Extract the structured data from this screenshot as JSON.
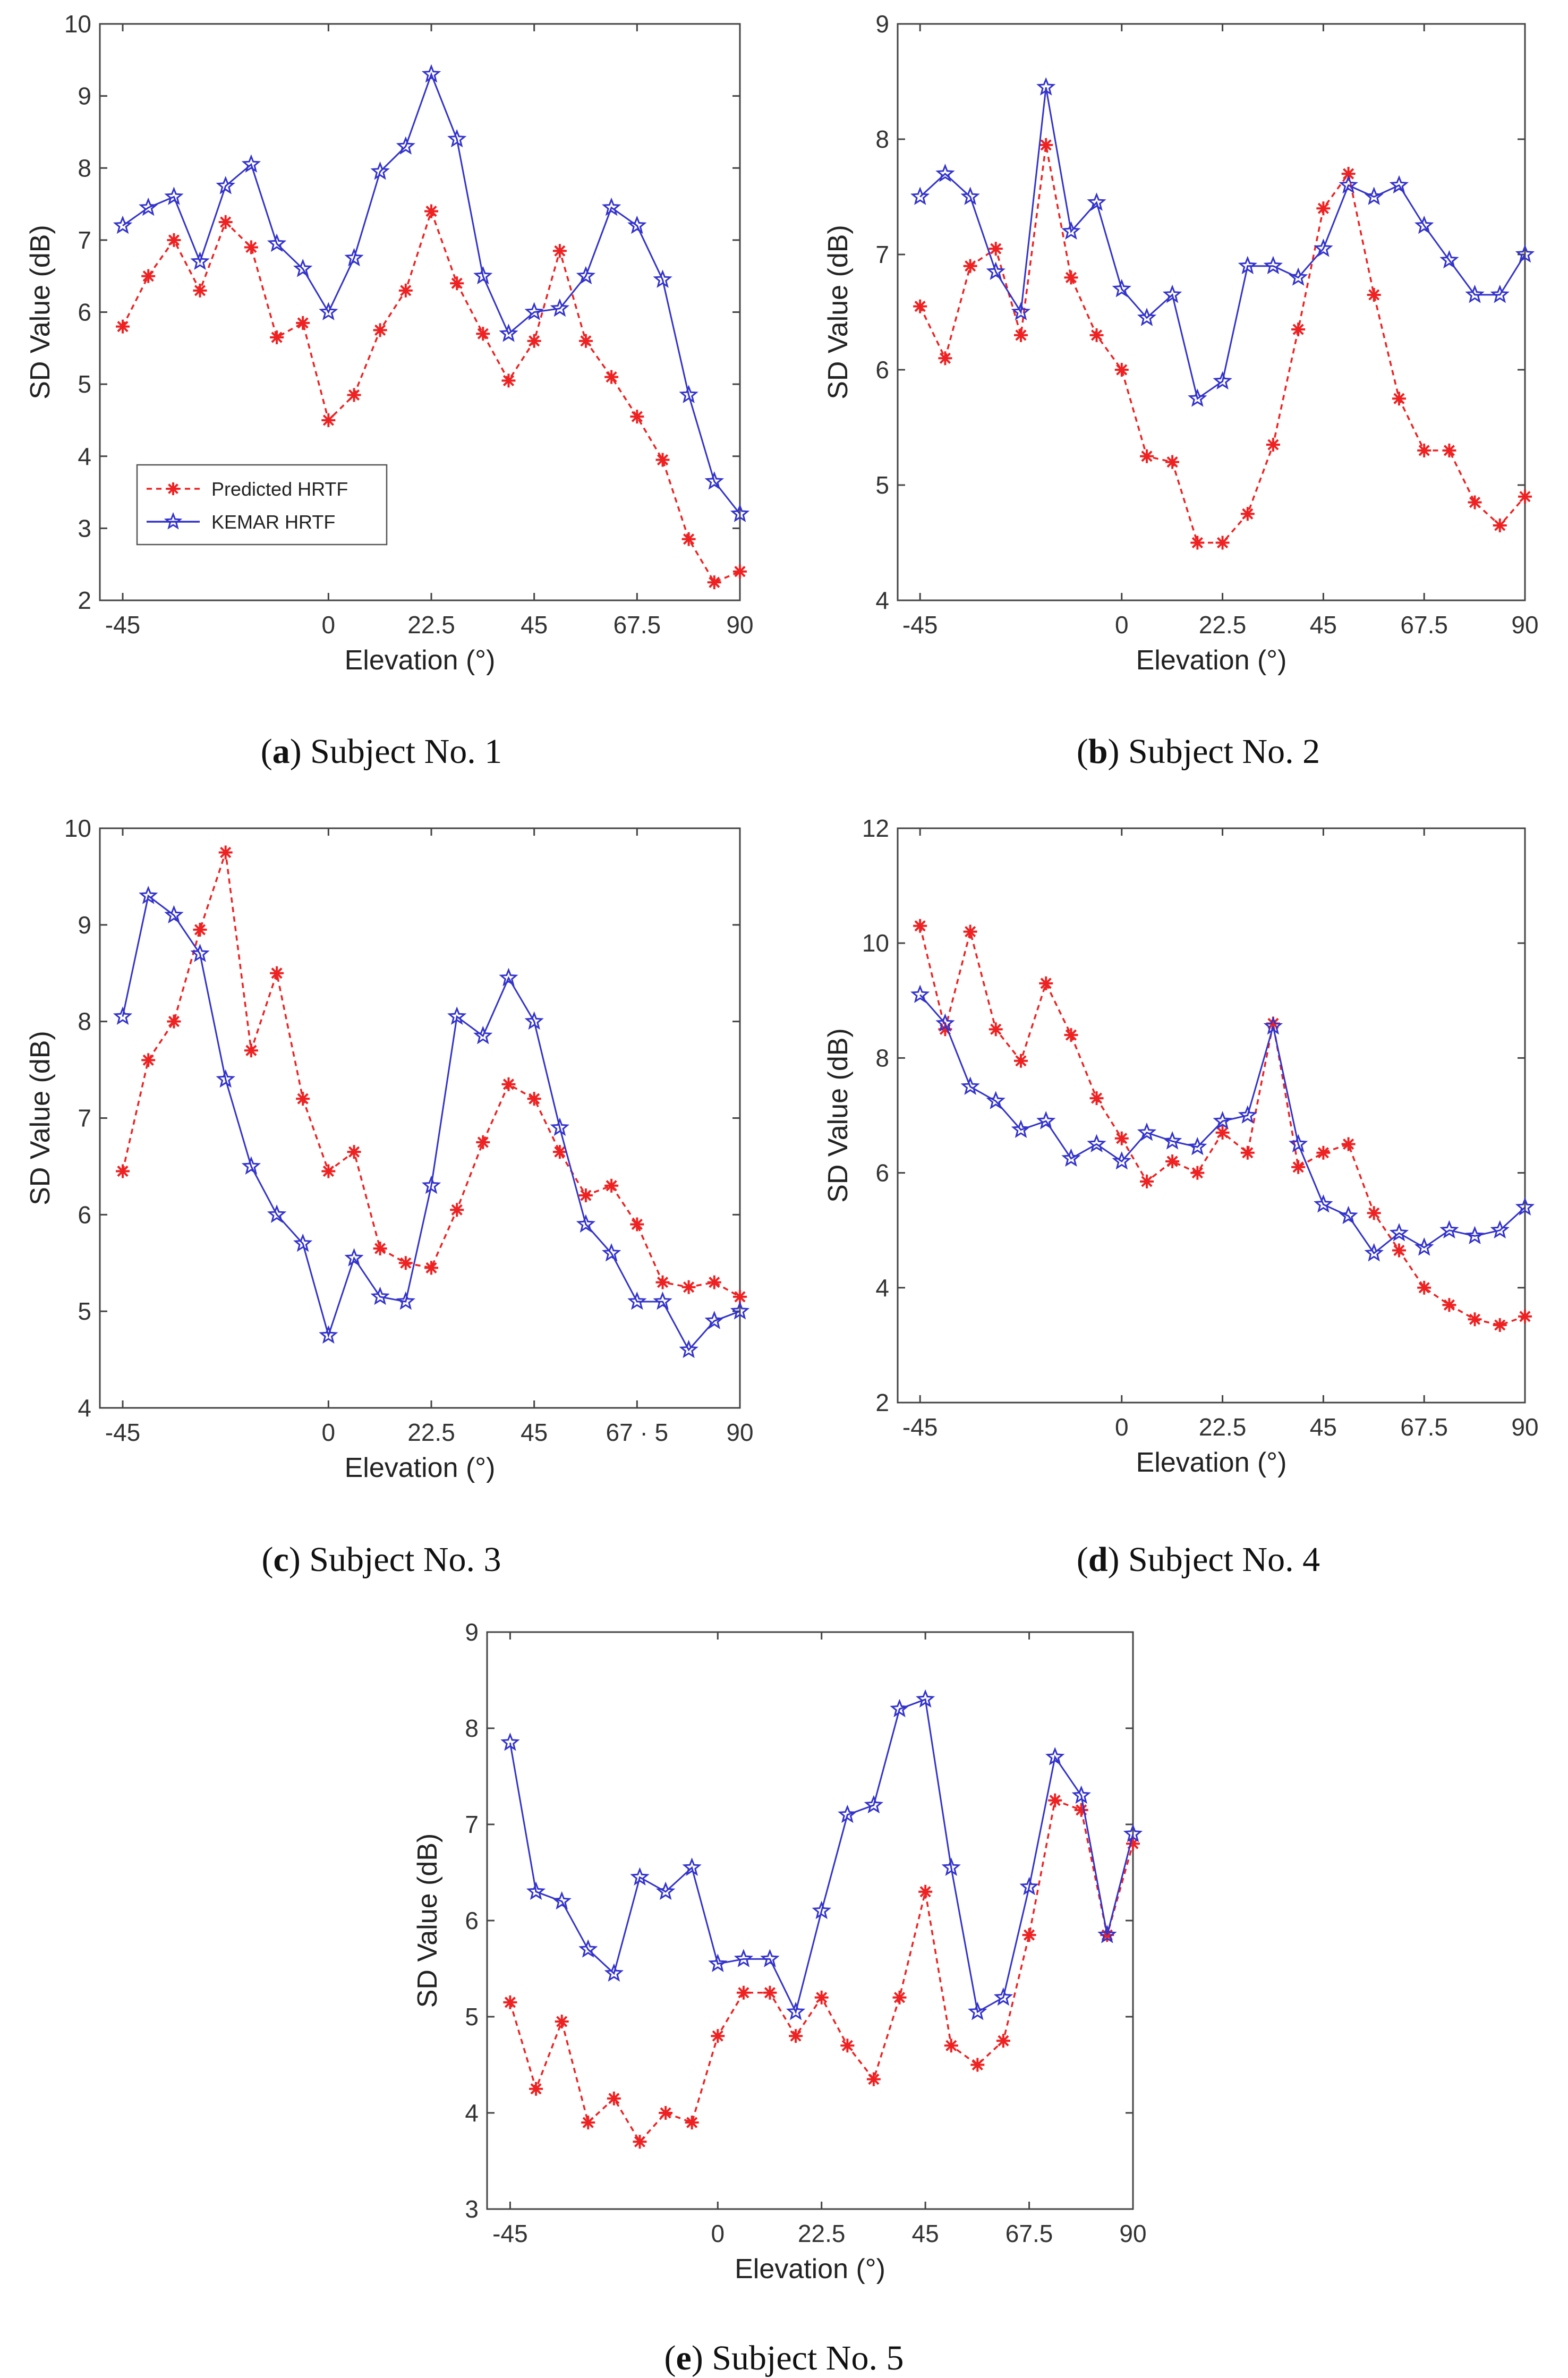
{
  "chart_data": [
    {
      "type": "line",
      "panel": "a",
      "caption_letter": "a",
      "caption_text": ") Subject No. 1",
      "ylabel": "SD Value (dB)",
      "xlabel": "Elevation (°)",
      "ylim": [
        2,
        10
      ],
      "yticks": [
        "2",
        "3",
        "4",
        "5",
        "6",
        "7",
        "8",
        "9",
        "10"
      ],
      "xlim": [
        -50,
        90
      ],
      "xticks": [
        {
          "v": -45,
          "label": "-45"
        },
        {
          "v": 0,
          "label": "0"
        },
        {
          "v": 22.5,
          "label": "22.5"
        },
        {
          "v": 45,
          "label": "45"
        },
        {
          "v": 67.5,
          "label": "67.5"
        },
        {
          "v": 90,
          "label": "90"
        }
      ],
      "legend": {
        "show": true,
        "position": "bottom-left"
      },
      "x": [
        -45,
        -39.4,
        -33.8,
        -28.1,
        -22.5,
        -16.9,
        -11.3,
        -5.6,
        0,
        5.6,
        11.3,
        16.9,
        22.5,
        28.1,
        33.8,
        39.4,
        45,
        50.6,
        56.3,
        61.9,
        67.5,
        73.1,
        78.8,
        84.4,
        90
      ],
      "series": [
        {
          "name": "Predicted HRTF",
          "color": "#ee2222",
          "style": "dashed",
          "marker": "asterisk",
          "values": [
            5.8,
            6.5,
            7.0,
            6.3,
            7.25,
            6.9,
            5.65,
            5.85,
            4.5,
            4.85,
            5.75,
            6.3,
            7.4,
            6.4,
            5.7,
            5.05,
            5.6,
            6.85,
            5.6,
            5.1,
            4.55,
            3.95,
            2.85,
            2.25,
            2.4
          ]
        },
        {
          "name": "KEMAR HRTF",
          "color": "#3333cc",
          "style": "solid",
          "marker": "star",
          "values": [
            7.2,
            7.45,
            7.6,
            6.7,
            7.75,
            8.05,
            6.95,
            6.6,
            6.0,
            6.75,
            7.95,
            8.3,
            9.3,
            8.4,
            6.5,
            5.7,
            6.0,
            6.05,
            6.5,
            7.45,
            7.2,
            6.45,
            4.85,
            3.65,
            3.2
          ]
        }
      ]
    },
    {
      "type": "line",
      "panel": "b",
      "caption_letter": "b",
      "caption_text": ") Subject No. 2",
      "ylabel": "SD Value (dB)",
      "xlabel": "Elevation (°)",
      "ylim": [
        4,
        9
      ],
      "yticks": [
        "4",
        "5",
        "6",
        "7",
        "8",
        "9"
      ],
      "xlim": [
        -50,
        90
      ],
      "xticks": [
        {
          "v": -45,
          "label": "-45"
        },
        {
          "v": 0,
          "label": "0"
        },
        {
          "v": 22.5,
          "label": "22.5"
        },
        {
          "v": 45,
          "label": "45"
        },
        {
          "v": 67.5,
          "label": "67.5"
        },
        {
          "v": 90,
          "label": "90"
        }
      ],
      "legend": {
        "show": false
      },
      "x": [
        -45,
        -39.4,
        -33.8,
        -28.1,
        -22.5,
        -16.9,
        -11.3,
        -5.6,
        0,
        5.6,
        11.3,
        16.9,
        22.5,
        28.1,
        33.8,
        39.4,
        45,
        50.6,
        56.3,
        61.9,
        67.5,
        73.1,
        78.8,
        84.4,
        90
      ],
      "series": [
        {
          "name": "Predicted HRTF",
          "color": "#ee2222",
          "style": "dashed",
          "marker": "asterisk",
          "values": [
            6.55,
            6.1,
            6.9,
            7.05,
            6.3,
            7.95,
            6.8,
            6.3,
            6.0,
            5.25,
            5.2,
            4.5,
            4.5,
            4.75,
            5.35,
            6.35,
            7.4,
            7.7,
            6.65,
            5.75,
            5.3,
            5.3,
            4.85,
            4.65,
            4.9
          ]
        },
        {
          "name": "KEMAR HRTF",
          "color": "#3333cc",
          "style": "solid",
          "marker": "star",
          "values": [
            7.5,
            7.7,
            7.5,
            6.85,
            6.5,
            8.45,
            7.2,
            7.45,
            6.7,
            6.45,
            6.65,
            5.75,
            5.9,
            6.9,
            6.9,
            6.8,
            7.05,
            7.6,
            7.5,
            7.6,
            7.25,
            6.95,
            6.65,
            6.65,
            7.0
          ]
        }
      ]
    },
    {
      "type": "line",
      "panel": "c",
      "caption_letter": "c",
      "caption_text": ") Subject No. 3",
      "ylabel": "SD Value (dB)",
      "xlabel": "Elevation (°)",
      "ylim": [
        4,
        10
      ],
      "yticks": [
        "4",
        "5",
        "6",
        "7",
        "8",
        "9",
        "10"
      ],
      "xlim": [
        -50,
        90
      ],
      "xticks": [
        {
          "v": -45,
          "label": "-45"
        },
        {
          "v": 0,
          "label": "0"
        },
        {
          "v": 22.5,
          "label": "22.5"
        },
        {
          "v": 45,
          "label": "45"
        },
        {
          "v": 67.5,
          "label": "67 · 5"
        },
        {
          "v": 90,
          "label": "90"
        }
      ],
      "legend": {
        "show": false
      },
      "x": [
        -45,
        -39.4,
        -33.8,
        -28.1,
        -22.5,
        -16.9,
        -11.3,
        -5.6,
        0,
        5.6,
        11.3,
        16.9,
        22.5,
        28.1,
        33.8,
        39.4,
        45,
        50.6,
        56.3,
        61.9,
        67.5,
        73.1,
        78.8,
        84.4,
        90
      ],
      "series": [
        {
          "name": "Predicted HRTF",
          "color": "#ee2222",
          "style": "dashed",
          "marker": "asterisk",
          "values": [
            6.45,
            7.6,
            8.0,
            8.95,
            9.75,
            7.7,
            8.5,
            7.2,
            6.45,
            6.65,
            5.65,
            5.5,
            5.45,
            6.05,
            6.75,
            7.35,
            7.2,
            6.65,
            6.2,
            6.3,
            5.9,
            5.3,
            5.25,
            5.3,
            5.15
          ]
        },
        {
          "name": "KEMAR HRTF",
          "color": "#3333cc",
          "style": "solid",
          "marker": "star",
          "values": [
            8.05,
            9.3,
            9.1,
            8.7,
            7.4,
            6.5,
            6.0,
            5.7,
            4.75,
            5.55,
            5.15,
            5.1,
            6.3,
            8.05,
            7.85,
            8.45,
            8.0,
            6.9,
            5.9,
            5.6,
            5.1,
            5.1,
            4.6,
            4.9,
            5.0
          ]
        }
      ]
    },
    {
      "type": "line",
      "panel": "d",
      "caption_letter": "d",
      "caption_text": ") Subject No. 4",
      "ylabel": "SD Value (dB)",
      "xlabel": "Elevation (°)",
      "ylim": [
        2,
        12
      ],
      "yticks": [
        "2",
        "4",
        "6",
        "8",
        "10",
        "12"
      ],
      "xlim": [
        -50,
        90
      ],
      "xticks": [
        {
          "v": -45,
          "label": "-45"
        },
        {
          "v": 0,
          "label": "0"
        },
        {
          "v": 22.5,
          "label": "22.5"
        },
        {
          "v": 45,
          "label": "45"
        },
        {
          "v": 67.5,
          "label": "67.5"
        },
        {
          "v": 90,
          "label": "90"
        }
      ],
      "legend": {
        "show": false
      },
      "x": [
        -45,
        -39.4,
        -33.8,
        -28.1,
        -22.5,
        -16.9,
        -11.3,
        -5.6,
        0,
        5.6,
        11.3,
        16.9,
        22.5,
        28.1,
        33.8,
        39.4,
        45,
        50.6,
        56.3,
        61.9,
        67.5,
        73.1,
        78.8,
        84.4,
        90
      ],
      "series": [
        {
          "name": "Predicted HRTF",
          "color": "#ee2222",
          "style": "dashed",
          "marker": "asterisk",
          "values": [
            10.3,
            8.5,
            10.2,
            8.5,
            7.95,
            9.3,
            8.4,
            7.3,
            6.6,
            5.85,
            6.2,
            6.0,
            6.7,
            6.35,
            8.6,
            6.1,
            6.35,
            6.5,
            5.3,
            4.65,
            4.0,
            3.7,
            3.45,
            3.35,
            3.5
          ]
        },
        {
          "name": "KEMAR HRTF",
          "color": "#3333cc",
          "style": "solid",
          "marker": "star",
          "values": [
            9.1,
            8.6,
            7.5,
            7.25,
            6.75,
            6.9,
            6.25,
            6.5,
            6.2,
            6.7,
            6.55,
            6.45,
            6.9,
            7.0,
            8.55,
            6.5,
            5.45,
            5.25,
            4.6,
            4.95,
            4.7,
            5.0,
            4.9,
            5.0,
            5.4
          ]
        }
      ]
    },
    {
      "type": "line",
      "panel": "e",
      "caption_letter": "e",
      "caption_text": ") Subject No. 5",
      "ylabel": "SD Value (dB)",
      "xlabel": "Elevation (°)",
      "ylim": [
        3,
        9
      ],
      "yticks": [
        "3",
        "4",
        "5",
        "6",
        "7",
        "8",
        "9"
      ],
      "xlim": [
        -50,
        90
      ],
      "xticks": [
        {
          "v": -45,
          "label": "-45"
        },
        {
          "v": 0,
          "label": "0"
        },
        {
          "v": 22.5,
          "label": "22.5"
        },
        {
          "v": 45,
          "label": "45"
        },
        {
          "v": 67.5,
          "label": "67.5"
        },
        {
          "v": 90,
          "label": "90"
        }
      ],
      "legend": {
        "show": false
      },
      "x": [
        -45,
        -39.4,
        -33.8,
        -28.1,
        -22.5,
        -16.9,
        -11.3,
        -5.6,
        0,
        5.6,
        11.3,
        16.9,
        22.5,
        28.1,
        33.8,
        39.4,
        45,
        50.6,
        56.3,
        61.9,
        67.5,
        73.1,
        78.8,
        84.4,
        90
      ],
      "series": [
        {
          "name": "Predicted HRTF",
          "color": "#ee2222",
          "style": "dashed",
          "marker": "asterisk",
          "values": [
            5.15,
            4.25,
            4.95,
            3.9,
            4.15,
            3.7,
            4.0,
            3.9,
            4.8,
            5.25,
            5.25,
            4.8,
            5.2,
            4.7,
            4.35,
            5.2,
            6.3,
            4.7,
            4.5,
            4.75,
            5.85,
            7.25,
            7.15,
            5.85,
            6.8
          ]
        },
        {
          "name": "KEMAR HRTF",
          "color": "#3333cc",
          "style": "solid",
          "marker": "star",
          "values": [
            7.85,
            6.3,
            6.2,
            5.7,
            5.45,
            6.45,
            6.3,
            6.55,
            5.55,
            5.6,
            5.6,
            5.05,
            6.1,
            7.1,
            7.2,
            8.2,
            8.3,
            6.55,
            5.05,
            5.2,
            6.35,
            7.7,
            7.3,
            5.85,
            6.9
          ]
        }
      ]
    }
  ]
}
